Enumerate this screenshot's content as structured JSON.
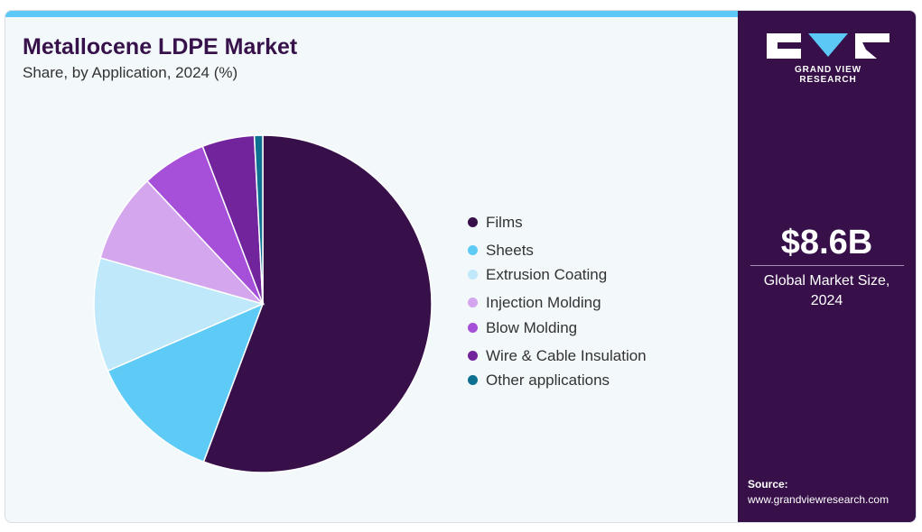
{
  "title": "Metallocene LDPE Market",
  "subtitle": "Share, by Application, 2024 (%)",
  "chart_data": {
    "type": "pie",
    "title": "Metallocene LDPE Market",
    "subtitle": "Share, by Application, 2024 (%)",
    "legend_position": "right",
    "series": [
      {
        "name": "Films",
        "value": 55.7,
        "color": "#37104a"
      },
      {
        "name": "Sheets",
        "value": 12.8,
        "color": "#5ecbf7"
      },
      {
        "name": "Extrusion Coating",
        "value": 10.9,
        "color": "#bfe9fa"
      },
      {
        "name": "Injection Molding",
        "value": 8.6,
        "color": "#d4a6ee"
      },
      {
        "name": "Blow Molding",
        "value": 6.2,
        "color": "#a64fd8"
      },
      {
        "name": "Wire & Cable Insulation",
        "value": 5.0,
        "color": "#71249c"
      },
      {
        "name": "Other applications",
        "value": 0.8,
        "color": "#0e7192"
      }
    ]
  },
  "side_panel": {
    "brand": "GRAND VIEW RESEARCH",
    "market_size_value": "$8.6B",
    "market_size_label": "Global Market Size, 2024",
    "source_label": "Source:",
    "source_url": "www.grandviewresearch.com"
  }
}
